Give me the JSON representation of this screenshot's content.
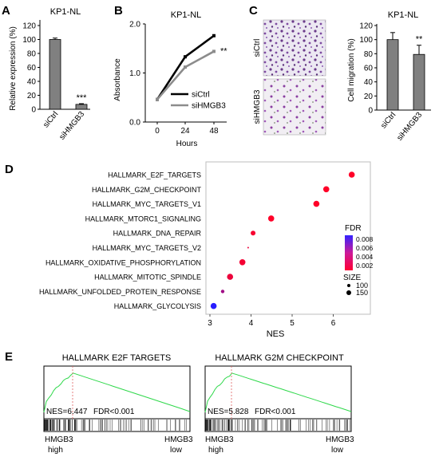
{
  "figure": {
    "panelA": {
      "letter": "A",
      "title": "KP1-NL",
      "ylabel": "Relative expression (%)",
      "yticks": [
        "0",
        "20",
        "40",
        "60",
        "80",
        "100",
        "120"
      ],
      "bars": [
        {
          "label": "siCtrl",
          "value": 100,
          "err": 2
        },
        {
          "label": "siHMGB3",
          "value": 7,
          "err": 1
        }
      ],
      "sig": "***",
      "bar_color": "#808080"
    },
    "panelB": {
      "letter": "B",
      "title": "KP1-NL",
      "ylabel": "Absorbance",
      "xlabel": "Hours",
      "xticks": [
        "0",
        "24",
        "48"
      ],
      "yticks": [
        "0.0",
        "1.0",
        "2.0"
      ],
      "series": [
        {
          "name": "siCtrl",
          "values": [
            0.46,
            1.33,
            1.76
          ],
          "color": "#000000"
        },
        {
          "name": "siHMGB3",
          "values": [
            0.46,
            1.12,
            1.44
          ],
          "color": "#8c8c8c"
        }
      ],
      "sig": "**"
    },
    "panelC": {
      "letter": "C",
      "title": "KP1-NL",
      "img_label_1": "siCtrl",
      "img_label_2": "siHMGB3",
      "ylabel": "Cell migration (%)",
      "yticks": [
        "0",
        "20",
        "40",
        "60",
        "80",
        "100",
        "120"
      ],
      "bars": [
        {
          "label": "siCtrl",
          "value": 100,
          "err": 10
        },
        {
          "label": "siHMGB3",
          "value": 79,
          "err": 13
        }
      ],
      "sig": "**",
      "bar_color": "#808080"
    },
    "panelD": {
      "letter": "D",
      "xlabel": "NES",
      "xticks": [
        "3",
        "4",
        "5",
        "6"
      ],
      "legend_fdr_title": "FDR",
      "legend_fdr_ticks": [
        "0.008",
        "0.006",
        "0.004",
        "0.002"
      ],
      "legend_size_title": "SIZE",
      "legend_size_ticks": [
        "100",
        "150"
      ],
      "pathways": [
        {
          "name": "HALLMARK_E2F_TARGETS",
          "nes": 6.45,
          "fdr": 0.0005,
          "size": 150
        },
        {
          "name": "HALLMARK_G2M_CHECKPOINT",
          "nes": 5.83,
          "fdr": 0.0005,
          "size": 150
        },
        {
          "name": "HALLMARK_MYC_TARGETS_V1",
          "nes": 5.59,
          "fdr": 0.0005,
          "size": 150
        },
        {
          "name": "HALLMARK_MTORC1_SIGNALING",
          "nes": 4.49,
          "fdr": 0.0005,
          "size": 150
        },
        {
          "name": "HALLMARK_DNA_REPAIR",
          "nes": 4.05,
          "fdr": 0.0008,
          "size": 120
        },
        {
          "name": "HALLMARK_MYC_TARGETS_V2",
          "nes": 3.93,
          "fdr": 0.0012,
          "size": 60
        },
        {
          "name": "HALLMARK_OXIDATIVE_PHOSPHORYLATION",
          "nes": 3.79,
          "fdr": 0.0009,
          "size": 150
        },
        {
          "name": "HALLMARK_MITOTIC_SPINDLE",
          "nes": 3.49,
          "fdr": 0.0012,
          "size": 150
        },
        {
          "name": "HALLMARK_UNFOLDED_PROTEIN_RESPONSE",
          "nes": 3.31,
          "fdr": 0.004,
          "size": 100
        },
        {
          "name": "HALLMARK_GLYCOLYSIS",
          "nes": 3.09,
          "fdr": 0.0085,
          "size": 150
        }
      ]
    },
    "panelE": {
      "letter": "E",
      "plots": [
        {
          "title": "HALLMARK E2F TARGETS",
          "nes_text": "NES=6.447",
          "fdr_text": "FDR<0.001"
        },
        {
          "title": "HALLMARK G2M CHECKPOINT",
          "nes_text": "NES=5.828",
          "fdr_text": "FDR<0.001"
        }
      ],
      "left_label_1": "HMGB3",
      "left_label_2": "high",
      "right_label_1": "HMGB3",
      "right_label_2": "low"
    }
  },
  "chart_data": [
    {
      "type": "bar",
      "title": "KP1-NL",
      "categories": [
        "siCtrl",
        "siHMGB3"
      ],
      "values": [
        100,
        7
      ],
      "ylabel": "Relative expression (%)",
      "ylim": [
        0,
        120
      ]
    },
    {
      "type": "line",
      "title": "KP1-NL",
      "x": [
        0,
        24,
        48
      ],
      "series": [
        {
          "name": "siCtrl",
          "values": [
            0.46,
            1.33,
            1.76
          ]
        },
        {
          "name": "siHMGB3",
          "values": [
            0.46,
            1.12,
            1.44
          ]
        }
      ],
      "xlabel": "Hours",
      "ylabel": "Absorbance",
      "ylim": [
        0,
        2.0
      ]
    },
    {
      "type": "bar",
      "title": "KP1-NL",
      "categories": [
        "siCtrl",
        "siHMGB3"
      ],
      "values": [
        100,
        79
      ],
      "ylabel": "Cell migration (%)",
      "ylim": [
        0,
        120
      ]
    },
    {
      "type": "scatter",
      "xlabel": "NES",
      "xlim": [
        2.9,
        6.7
      ],
      "categories": [
        "HALLMARK_E2F_TARGETS",
        "HALLMARK_G2M_CHECKPOINT",
        "HALLMARK_MYC_TARGETS_V1",
        "HALLMARK_MTORC1_SIGNALING",
        "HALLMARK_DNA_REPAIR",
        "HALLMARK_MYC_TARGETS_V2",
        "HALLMARK_OXIDATIVE_PHOSPHORYLATION",
        "HALLMARK_MITOTIC_SPINDLE",
        "HALLMARK_UNFOLDED_PROTEIN_RESPONSE",
        "HALLMARK_GLYCOLYSIS"
      ],
      "values": [
        6.45,
        5.83,
        5.59,
        4.49,
        4.05,
        3.93,
        3.79,
        3.49,
        3.31,
        3.09
      ]
    }
  ]
}
